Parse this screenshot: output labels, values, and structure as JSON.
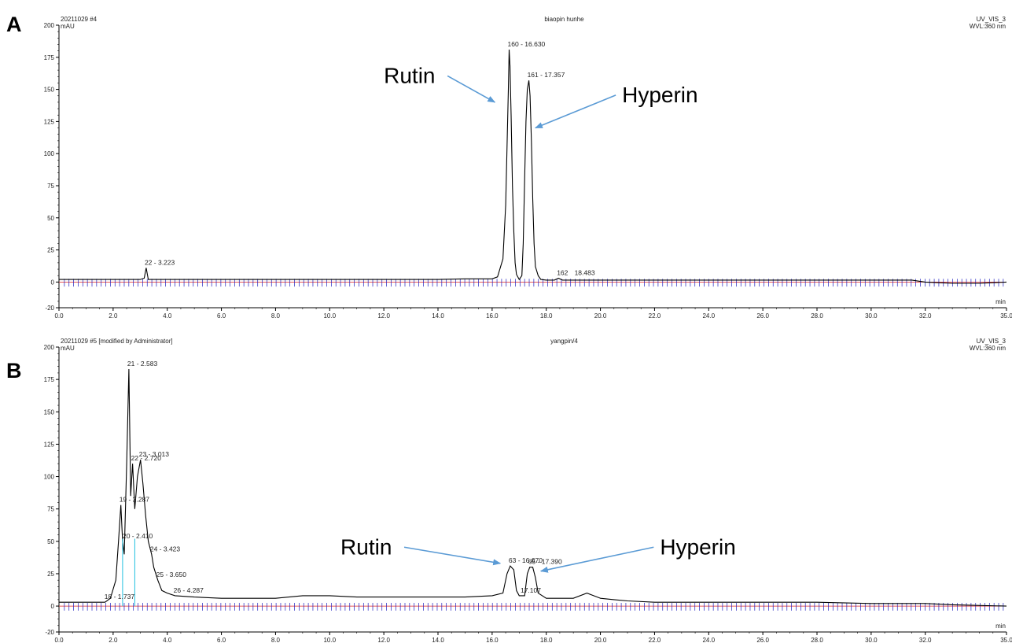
{
  "chart_data": [
    {
      "type": "line",
      "panel_letter": "A",
      "header": {
        "left": "20211029 #4",
        "center": "biaopin hunhe",
        "right_top": "UV_VIS_3",
        "right_bottom": "WVL:360 nm"
      },
      "ylabel": "mAU",
      "xlabel": "min",
      "xlim": [
        0,
        35
      ],
      "ylim": [
        -20,
        200
      ],
      "x_ticks": [
        "0.0",
        "2.0",
        "4.0",
        "6.0",
        "8.0",
        "10.0",
        "12.0",
        "14.0",
        "16.0",
        "18.0",
        "20.0",
        "22.0",
        "24.0",
        "26.0",
        "28.0",
        "30.0",
        "32.0",
        "35.0"
      ],
      "y_ticks": [
        "-20",
        "0",
        "25",
        "50",
        "75",
        "100",
        "125",
        "150",
        "175",
        "200"
      ],
      "series": [
        {
          "x": [
            0.0,
            1.0,
            2.0,
            3.0,
            3.15,
            3.22,
            3.3,
            4.0,
            6.0,
            8.0,
            10.0,
            12.0,
            14.0,
            15.0,
            16.0,
            16.2,
            16.4,
            16.5,
            16.55,
            16.6,
            16.63,
            16.66,
            16.7,
            16.75,
            16.8,
            16.85,
            16.9,
            17.0,
            17.1,
            17.15,
            17.2,
            17.25,
            17.3,
            17.357,
            17.4,
            17.45,
            17.5,
            17.55,
            17.6,
            17.7,
            17.8,
            18.0,
            18.3,
            18.45,
            18.6,
            18.8,
            19.5,
            20.0,
            22.0,
            24.0,
            26.0,
            28.0,
            30.0,
            31.5,
            32.0,
            33.0,
            34.0,
            35.0
          ],
          "y": [
            2,
            2,
            2,
            2,
            3,
            11,
            2,
            2,
            2,
            2,
            2,
            2,
            2,
            2.5,
            2.5,
            4,
            18,
            60,
            105,
            150,
            181,
            168,
            130,
            75,
            40,
            15,
            6,
            2,
            5,
            30,
            80,
            125,
            150,
            157,
            145,
            110,
            65,
            30,
            12,
            5,
            2,
            1.5,
            1.5,
            3,
            1.5,
            1.5,
            1.5,
            1.5,
            1.5,
            1.5,
            1.5,
            1.5,
            1.5,
            1.5,
            0,
            -1,
            -1,
            0
          ]
        }
      ],
      "peak_labels": [
        {
          "text": "22 - 3.223",
          "x": 3.223,
          "y": 11
        },
        {
          "text": "160 - 16.630",
          "x": 16.63,
          "y": 181
        },
        {
          "text": "161 - 17.357",
          "x": 17.357,
          "y": 157
        },
        {
          "text": "162",
          "x": 18.45,
          "y": 3
        },
        {
          "text": "18.483",
          "x": 19.1,
          "y": 3
        }
      ],
      "annotations": [
        {
          "text": "Rutin",
          "text_x": 12.0,
          "text_y": 155,
          "arrow_to_x": 16.1,
          "arrow_to_y": 140
        },
        {
          "text": "Hyperin",
          "text_x": 20.8,
          "text_y": 140,
          "arrow_to_x": 17.6,
          "arrow_to_y": 120
        }
      ]
    },
    {
      "type": "line",
      "panel_letter": "B",
      "header": {
        "left": "20211029 #5 [modified by Administrator]",
        "center": "yangpin/4",
        "right_top": "UV_VIS_3",
        "right_bottom": "WVL:360 nm"
      },
      "ylabel": "mAU",
      "xlabel": "min",
      "xlim": [
        0,
        35
      ],
      "ylim": [
        -20,
        200
      ],
      "x_ticks": [
        "0.0",
        "2.0",
        "4.0",
        "6.0",
        "8.0",
        "10.0",
        "12.0",
        "14.0",
        "16.0",
        "18.0",
        "20.0",
        "22.0",
        "24.0",
        "26.0",
        "28.0",
        "30.0",
        "32.0",
        "35.0"
      ],
      "y_ticks": [
        "-20",
        "0",
        "25",
        "50",
        "75",
        "100",
        "125",
        "150",
        "175",
        "200"
      ],
      "series": [
        {
          "x": [
            0.0,
            1.0,
            1.7,
            1.9,
            2.1,
            2.2,
            2.287,
            2.35,
            2.41,
            2.5,
            2.583,
            2.65,
            2.72,
            2.8,
            2.9,
            3.013,
            3.1,
            3.2,
            3.3,
            3.423,
            3.5,
            3.65,
            3.8,
            4.0,
            4.287,
            5.0,
            6.0,
            7.0,
            8.0,
            9.0,
            10.0,
            11.0,
            12.0,
            13.0,
            14.0,
            15.0,
            16.0,
            16.4,
            16.55,
            16.67,
            16.8,
            16.9,
            17.0,
            17.2,
            17.3,
            17.39,
            17.5,
            17.6,
            17.7,
            18.0,
            18.5,
            19.0,
            19.5,
            20.0,
            20.5,
            21.0,
            22.0,
            23.0,
            24.0,
            26.0,
            28.0,
            30.0,
            32.0,
            33.0,
            35.0
          ],
          "y": [
            3,
            3,
            3,
            6,
            20,
            50,
            78,
            50,
            40,
            110,
            183,
            85,
            110,
            75,
            100,
            113,
            95,
            70,
            50,
            40,
            30,
            20,
            12,
            10,
            8,
            7,
            6,
            6,
            6,
            8,
            8,
            7,
            7,
            7,
            7,
            7,
            8,
            10,
            25,
            31,
            28,
            12,
            8,
            8,
            25,
            30,
            30,
            22,
            10,
            6,
            6,
            6,
            10,
            6,
            5,
            4,
            3,
            3,
            3,
            3,
            3,
            2,
            2,
            1,
            0
          ]
        }
      ],
      "peak_labels": [
        {
          "text": "21 - 2.583",
          "x": 2.583,
          "y": 183
        },
        {
          "text": "23 - 3.013",
          "x": 3.013,
          "y": 113
        },
        {
          "text": "22 - 2.720",
          "x": 2.72,
          "y": 110
        },
        {
          "text": "19 - 2.287",
          "x": 2.287,
          "y": 78
        },
        {
          "text": "20 - 2.410",
          "x": 2.41,
          "y": 50
        },
        {
          "text": "24 - 3.423",
          "x": 3.423,
          "y": 40
        },
        {
          "text": "25 - 3.650",
          "x": 3.65,
          "y": 20
        },
        {
          "text": "26 - 4.287",
          "x": 4.287,
          "y": 8
        },
        {
          "text": "18 - 1.737",
          "x": 1.737,
          "y": 3
        },
        {
          "text": "63 - 16.670",
          "x": 16.67,
          "y": 31
        },
        {
          "text": "65 - 17.390",
          "x": 17.39,
          "y": 30
        },
        {
          "text": "17.107",
          "x": 17.107,
          "y": 8
        }
      ],
      "annotations": [
        {
          "text": "Rutin",
          "text_x": 10.4,
          "text_y": 40,
          "arrow_to_x": 16.3,
          "arrow_to_y": 33
        },
        {
          "text": "Hyperin",
          "text_x": 22.2,
          "text_y": 40,
          "arrow_to_x": 17.8,
          "arrow_to_y": 27
        }
      ]
    }
  ],
  "colors": {
    "trace": "#000000",
    "baseline": "#e02020",
    "markers": "#2020c0",
    "peak_bounds": "#20c0e0",
    "arrow": "#5b9bd5"
  }
}
